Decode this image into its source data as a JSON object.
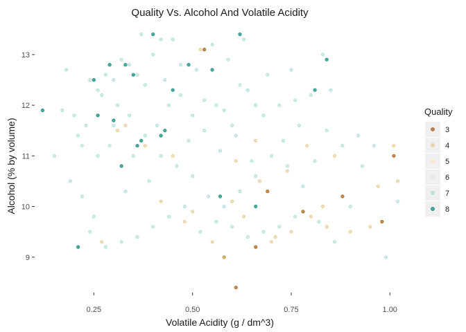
{
  "chart_data": {
    "type": "scatter",
    "title": "Quality Vs. Alcohol And Volatile Acidity",
    "xlabel": "Volatile Acidity (g / dm^3)",
    "ylabel": "Alcohol (% by volume)",
    "xlim": [
      0.1,
      1.04
    ],
    "ylim": [
      8.3,
      13.6
    ],
    "xticks": [
      {
        "value": 0.25,
        "label": "0.25"
      },
      {
        "value": 0.5,
        "label": "0.50"
      },
      {
        "value": 0.75,
        "label": "0.75"
      },
      {
        "value": 1.0,
        "label": "1.00"
      }
    ],
    "yticks": [
      {
        "value": 9,
        "label": "9"
      },
      {
        "value": 10,
        "label": "10"
      },
      {
        "value": 11,
        "label": "11"
      },
      {
        "value": 12,
        "label": "12"
      },
      {
        "value": 13,
        "label": "13"
      }
    ],
    "grid": false,
    "legend": {
      "title": "Quality",
      "position": "right"
    },
    "series": [
      {
        "name": "3",
        "color": "#a6611a",
        "opacity": 0.75,
        "points": [
          [
            0.61,
            8.4
          ],
          [
            0.58,
            9.0
          ],
          [
            0.66,
            9.2
          ],
          [
            0.69,
            10.3
          ],
          [
            0.78,
            9.9
          ],
          [
            0.88,
            10.2
          ],
          [
            0.98,
            9.7
          ],
          [
            1.01,
            11.0
          ],
          [
            0.53,
            13.1
          ]
        ]
      },
      {
        "name": "4",
        "color": "#dfc27d",
        "opacity": 0.55,
        "points": [
          [
            0.27,
            9.3
          ],
          [
            0.31,
            11.5
          ],
          [
            0.42,
            10.1
          ],
          [
            0.55,
            9.3
          ],
          [
            0.58,
            9.0
          ],
          [
            0.63,
            9.8
          ],
          [
            0.67,
            10.5
          ],
          [
            0.71,
            9.4
          ],
          [
            0.75,
            9.5
          ],
          [
            0.8,
            9.8
          ],
          [
            0.83,
            10.0
          ],
          [
            0.86,
            11.0
          ],
          [
            0.9,
            9.5
          ],
          [
            0.95,
            9.6
          ],
          [
            0.97,
            10.4
          ],
          [
            1.01,
            11.2
          ],
          [
            1.02,
            10.5
          ],
          [
            0.74,
            10.7
          ],
          [
            0.61,
            10.9
          ],
          [
            0.5,
            9.9
          ],
          [
            0.45,
            11.0
          ],
          [
            0.38,
            11.2
          ],
          [
            0.66,
            11.3
          ],
          [
            0.79,
            11.2
          ],
          [
            0.84,
            9.6
          ],
          [
            0.52,
            13.1
          ],
          [
            0.33,
            11.6
          ],
          [
            0.7,
            9.3
          ],
          [
            0.6,
            10.1
          ],
          [
            0.48,
            9.7
          ]
        ]
      },
      {
        "name": "5",
        "color": "#f6e8c3",
        "opacity": 0.8,
        "points": []
      },
      {
        "name": "6",
        "color": "#e4ebe9",
        "opacity": 0.8,
        "points": []
      },
      {
        "name": "7",
        "color": "#80cdc1",
        "opacity": 0.4,
        "points": [
          [
            0.17,
            11.9
          ],
          [
            0.2,
            11.8
          ],
          [
            0.22,
            11.2
          ],
          [
            0.24,
            12.5
          ],
          [
            0.26,
            12.3
          ],
          [
            0.28,
            12.6
          ],
          [
            0.3,
            12.5
          ],
          [
            0.32,
            12.9
          ],
          [
            0.34,
            12.8
          ],
          [
            0.36,
            12.6
          ],
          [
            0.38,
            12.4
          ],
          [
            0.4,
            13.0
          ],
          [
            0.42,
            13.3
          ],
          [
            0.44,
            12.0
          ],
          [
            0.47,
            12.2
          ],
          [
            0.5,
            11.8
          ],
          [
            0.53,
            12.1
          ],
          [
            0.56,
            12.0
          ],
          [
            0.58,
            11.9
          ],
          [
            0.6,
            11.6
          ],
          [
            0.62,
            12.4
          ],
          [
            0.64,
            12.3
          ],
          [
            0.66,
            12.0
          ],
          [
            0.68,
            11.8
          ],
          [
            0.72,
            12.0
          ],
          [
            0.76,
            12.1
          ],
          [
            0.8,
            12.2
          ],
          [
            0.84,
            11.5
          ],
          [
            0.88,
            11.2
          ],
          [
            0.92,
            11.4
          ],
          [
            0.96,
            11.2
          ],
          [
            1.02,
            10.1
          ],
          [
            0.99,
            9.0
          ],
          [
            0.86,
            9.3
          ],
          [
            0.78,
            10.4
          ],
          [
            0.74,
            10.8
          ],
          [
            0.7,
            11.0
          ],
          [
            0.66,
            10.6
          ],
          [
            0.62,
            10.3
          ],
          [
            0.58,
            10.0
          ],
          [
            0.54,
            10.2
          ],
          [
            0.5,
            10.6
          ],
          [
            0.46,
            10.8
          ],
          [
            0.42,
            11.0
          ],
          [
            0.38,
            11.4
          ],
          [
            0.34,
            11.8
          ],
          [
            0.3,
            11.6
          ],
          [
            0.26,
            11.0
          ],
          [
            0.22,
            10.2
          ],
          [
            0.19,
            10.5
          ],
          [
            0.24,
            9.5
          ],
          [
            0.28,
            9.2
          ],
          [
            0.32,
            9.3
          ],
          [
            0.36,
            9.4
          ],
          [
            0.4,
            9.6
          ],
          [
            0.44,
            9.8
          ],
          [
            0.48,
            10.0
          ],
          [
            0.52,
            9.5
          ],
          [
            0.56,
            9.7
          ],
          [
            0.6,
            9.6
          ],
          [
            0.64,
            9.4
          ],
          [
            0.68,
            9.5
          ],
          [
            0.72,
            9.6
          ],
          [
            0.76,
            9.8
          ],
          [
            0.82,
            9.7
          ],
          [
            0.9,
            10.0
          ],
          [
            0.15,
            11.0
          ],
          [
            0.18,
            12.7
          ],
          [
            0.37,
            13.4
          ],
          [
            0.45,
            13.3
          ],
          [
            0.55,
            13.2
          ],
          [
            0.63,
            13.3
          ],
          [
            0.83,
            13.0
          ],
          [
            0.35,
            11.0
          ],
          [
            0.29,
            11.2
          ],
          [
            0.41,
            11.6
          ],
          [
            0.49,
            11.3
          ],
          [
            0.57,
            11.1
          ],
          [
            0.65,
            10.9
          ],
          [
            0.73,
            11.3
          ],
          [
            0.81,
            10.9
          ],
          [
            0.69,
            12.6
          ],
          [
            0.75,
            12.7
          ],
          [
            0.85,
            12.3
          ],
          [
            0.25,
            9.8
          ],
          [
            0.33,
            10.3
          ],
          [
            0.39,
            10.5
          ],
          [
            0.51,
            12.7
          ],
          [
            0.59,
            12.9
          ],
          [
            0.27,
            12.2
          ],
          [
            0.31,
            12.0
          ],
          [
            0.43,
            12.5
          ],
          [
            0.47,
            12.8
          ],
          [
            0.23,
            11.6
          ],
          [
            0.21,
            11.4
          ],
          [
            0.53,
            11.5
          ],
          [
            0.61,
            11.4
          ],
          [
            0.77,
            11.6
          ],
          [
            0.93,
            10.8
          ]
        ]
      },
      {
        "name": "8",
        "color": "#018571",
        "opacity": 0.7,
        "points": [
          [
            0.12,
            11.9
          ],
          [
            0.21,
            9.2
          ],
          [
            0.26,
            11.8
          ],
          [
            0.29,
            12.8
          ],
          [
            0.33,
            12.8
          ],
          [
            0.35,
            12.6
          ],
          [
            0.37,
            11.3
          ],
          [
            0.4,
            13.4
          ],
          [
            0.43,
            11.5
          ],
          [
            0.49,
            12.8
          ],
          [
            0.55,
            12.7
          ],
          [
            0.62,
            13.4
          ],
          [
            0.81,
            12.3
          ],
          [
            0.84,
            12.9
          ],
          [
            0.36,
            11.2
          ],
          [
            0.3,
            11.7
          ],
          [
            0.42,
            11.4
          ],
          [
            0.57,
            10.2
          ],
          [
            0.66,
            10.0
          ],
          [
            0.45,
            12.3
          ],
          [
            0.25,
            12.5
          ],
          [
            0.32,
            10.8
          ]
        ]
      }
    ]
  }
}
